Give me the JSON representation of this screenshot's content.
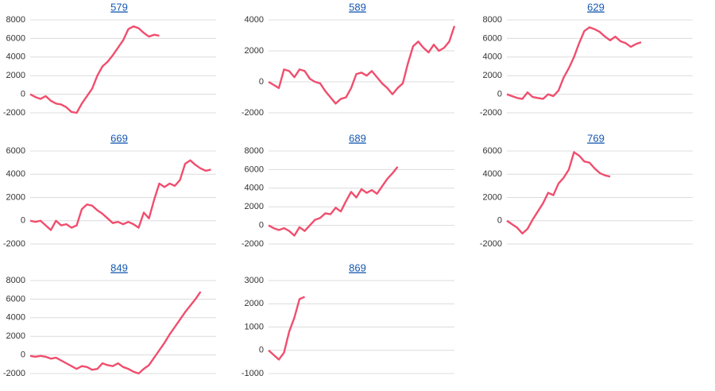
{
  "chart_data": [
    {
      "type": "line",
      "title": "579",
      "ylim": [
        -2000,
        8000
      ],
      "yticks": [
        -2000,
        0,
        2000,
        4000,
        6000,
        8000
      ],
      "grid": true,
      "color": "#f04e6e",
      "values": [
        0,
        -300,
        -500,
        -200,
        -700,
        -1000,
        -1100,
        -1400,
        -1900,
        -2000,
        -1000,
        -200,
        600,
        2000,
        3000,
        3500,
        4200,
        5000,
        5800,
        7000,
        7300,
        7100,
        6600,
        6200,
        6400,
        6300
      ]
    },
    {
      "type": "line",
      "title": "589",
      "ylim": [
        -2000,
        4000
      ],
      "yticks": [
        -2000,
        0,
        2000,
        4000
      ],
      "grid": true,
      "color": "#f04e6e",
      "values": [
        0,
        -200,
        -400,
        800,
        700,
        300,
        800,
        700,
        200,
        0,
        -100,
        -600,
        -1000,
        -1400,
        -1100,
        -1000,
        -400,
        500,
        600,
        400,
        700,
        300,
        -100,
        -400,
        -800,
        -400,
        -100,
        1200,
        2300,
        2600,
        2200,
        1900,
        2400,
        2000,
        2200,
        2600,
        3600
      ]
    },
    {
      "type": "line",
      "title": "629",
      "ylim": [
        -2000,
        8000
      ],
      "yticks": [
        -2000,
        0,
        2000,
        4000,
        6000,
        8000
      ],
      "grid": true,
      "color": "#f04e6e",
      "values": [
        0,
        -200,
        -400,
        -500,
        200,
        -300,
        -400,
        -500,
        0,
        -200,
        400,
        1800,
        2800,
        4000,
        5500,
        6800,
        7200,
        7000,
        6700,
        6200,
        5800,
        6200,
        5700,
        5500,
        5100,
        5400,
        5600
      ]
    },
    {
      "type": "line",
      "title": "669",
      "ylim": [
        -2000,
        6000
      ],
      "yticks": [
        -2000,
        0,
        2000,
        4000,
        6000
      ],
      "grid": true,
      "color": "#f04e6e",
      "values": [
        0,
        -100,
        0,
        -400,
        -800,
        0,
        -400,
        -300,
        -600,
        -400,
        1000,
        1400,
        1300,
        900,
        600,
        200,
        -200,
        -100,
        -300,
        -100,
        -300,
        -600,
        700,
        200,
        1800,
        3200,
        2900,
        3200,
        3000,
        3500,
        4900,
        5200,
        4800,
        4500,
        4300,
        4400
      ]
    },
    {
      "type": "line",
      "title": "689",
      "ylim": [
        -2000,
        8000
      ],
      "yticks": [
        -2000,
        0,
        2000,
        4000,
        6000,
        8000
      ],
      "grid": true,
      "color": "#f04e6e",
      "values": [
        0,
        -300,
        -500,
        -300,
        -600,
        -1100,
        -200,
        -600,
        0,
        600,
        800,
        1300,
        1200,
        1900,
        1500,
        2600,
        3600,
        3000,
        3900,
        3500,
        3800,
        3400,
        4200,
        5000,
        5600,
        6300
      ]
    },
    {
      "type": "line",
      "title": "769",
      "ylim": [
        -2000,
        6000
      ],
      "yticks": [
        -2000,
        0,
        2000,
        4000,
        6000
      ],
      "grid": true,
      "color": "#f04e6e",
      "values": [
        0,
        -300,
        -600,
        -1100,
        -700,
        100,
        800,
        1500,
        2400,
        2200,
        3200,
        3700,
        4400,
        5900,
        5600,
        5100,
        5000,
        4500,
        4100,
        3900,
        3800
      ]
    },
    {
      "type": "line",
      "title": "849",
      "ylim": [
        -2000,
        8000
      ],
      "yticks": [
        -2000,
        0,
        2000,
        4000,
        6000,
        8000
      ],
      "grid": true,
      "color": "#f04e6e",
      "values": [
        -100,
        -200,
        -100,
        -200,
        -400,
        -300,
        -600,
        -900,
        -1200,
        -1500,
        -1200,
        -1300,
        -1600,
        -1500,
        -900,
        -1100,
        -1200,
        -900,
        -1300,
        -1500,
        -1800,
        -2000,
        -1500,
        -1100,
        -300,
        500,
        1300,
        2200,
        3000,
        3800,
        4600,
        5300,
        6000,
        6800
      ]
    },
    {
      "type": "line",
      "title": "869",
      "ylim": [
        -1000,
        3000
      ],
      "yticks": [
        -1000,
        0,
        1000,
        2000,
        3000
      ],
      "grid": true,
      "color": "#f04e6e",
      "values": [
        0,
        -200,
        -400,
        -100,
        800,
        1400,
        2200,
        2300
      ]
    }
  ]
}
